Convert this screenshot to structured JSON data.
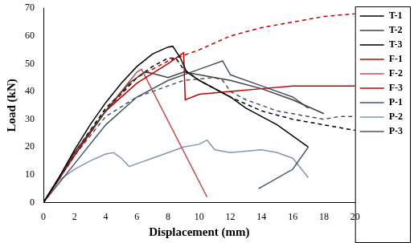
{
  "chart_data": {
    "type": "line",
    "x_label": "Displacement (mm)",
    "y_label": "Load (kN)",
    "xlim": [
      0,
      20
    ],
    "xticks": [
      0,
      2,
      4,
      6,
      8,
      10,
      12,
      14,
      16,
      18,
      20
    ],
    "ylim": [
      0,
      70
    ],
    "yticks": [
      0,
      10,
      20,
      30,
      40,
      50,
      60,
      70
    ],
    "grid": false,
    "legend": "right",
    "series": [
      {
        "name": "T-1",
        "color": "#000000",
        "line_style": "solid",
        "x": [
          0,
          1,
          2,
          3,
          4,
          5,
          6,
          7,
          8,
          8.3,
          8.8,
          9.2,
          10,
          12,
          13,
          15,
          17
        ],
        "values": [
          0,
          9,
          19,
          28,
          36,
          43,
          49,
          53.5,
          56,
          56.3,
          52,
          47,
          44,
          38,
          34,
          28,
          20
        ]
      },
      {
        "name": "T-2",
        "color": "#404040",
        "line_style": "solid",
        "x": [
          0,
          2,
          4,
          5.5,
          6.5,
          7,
          8,
          9,
          10,
          12,
          14,
          16,
          18
        ],
        "values": [
          0,
          18,
          33,
          43,
          47,
          46.5,
          45,
          47,
          46,
          44,
          41,
          37,
          32
        ]
      },
      {
        "name": "T-3",
        "color": "#000000",
        "line_style": "dashed",
        "x": [
          0,
          2,
          4,
          6,
          7,
          8,
          8.5,
          9,
          10,
          12,
          14,
          16,
          18,
          20
        ],
        "values": [
          0,
          18,
          34,
          45,
          49,
          52,
          52,
          48,
          44,
          38,
          33,
          30,
          28,
          26
        ]
      },
      {
        "name": "F-1",
        "color": "#c00000",
        "line_style": "solid",
        "x": [
          0,
          2,
          4,
          6,
          8,
          9,
          9.1,
          10,
          12,
          14,
          16,
          18,
          20
        ],
        "values": [
          0,
          17,
          33,
          43,
          50,
          54,
          37,
          39,
          40,
          41,
          42,
          42,
          42
        ]
      },
      {
        "name": "F-2",
        "color": "#c0504d",
        "line_style": "solid",
        "x": [
          0,
          2,
          4,
          5,
          6,
          6.3,
          10.5
        ],
        "values": [
          0,
          18,
          33,
          40,
          47,
          48,
          2
        ]
      },
      {
        "name": "F-3",
        "color": "#c00000",
        "line_style": "dashed",
        "x": [
          0,
          2,
          4,
          6,
          8,
          9,
          10,
          12,
          14,
          16,
          18,
          20
        ],
        "values": [
          0,
          17,
          33,
          45,
          51,
          53,
          55,
          60,
          63,
          65,
          67,
          68
        ]
      },
      {
        "name": "P-1",
        "color": "#44546a",
        "line_style": "solid",
        "x": [
          0,
          2,
          4,
          6,
          8,
          10,
          11.5,
          12,
          14,
          16,
          17,
          17,
          13.8,
          16,
          17
        ],
        "values": [
          0,
          14,
          28,
          38,
          44,
          48,
          51,
          46,
          42,
          38,
          34,
          null,
          5,
          12,
          20
        ]
      },
      {
        "name": "P-2",
        "color": "#8496b0",
        "line_style": "solid",
        "x": [
          0,
          1,
          2,
          3,
          4,
          4.5,
          5,
          5.5,
          6,
          7,
          8,
          9,
          10,
          10.5,
          11,
          12,
          14,
          15,
          16,
          17
        ],
        "values": [
          0,
          8,
          12,
          15,
          17.5,
          18,
          16,
          13,
          14,
          16,
          18,
          20,
          21,
          22.5,
          19,
          18,
          19,
          18,
          16,
          9
        ]
      },
      {
        "name": "P-3",
        "color": "#44546a",
        "line_style": "dashed",
        "x": [
          0,
          2,
          4,
          6,
          8,
          9,
          10,
          11,
          11.5,
          12,
          13,
          15,
          17,
          18,
          19,
          20
        ],
        "values": [
          0,
          17,
          31,
          38,
          42,
          44,
          44.5,
          45,
          44,
          40,
          37,
          33,
          31,
          30,
          31,
          31
        ]
      }
    ]
  }
}
